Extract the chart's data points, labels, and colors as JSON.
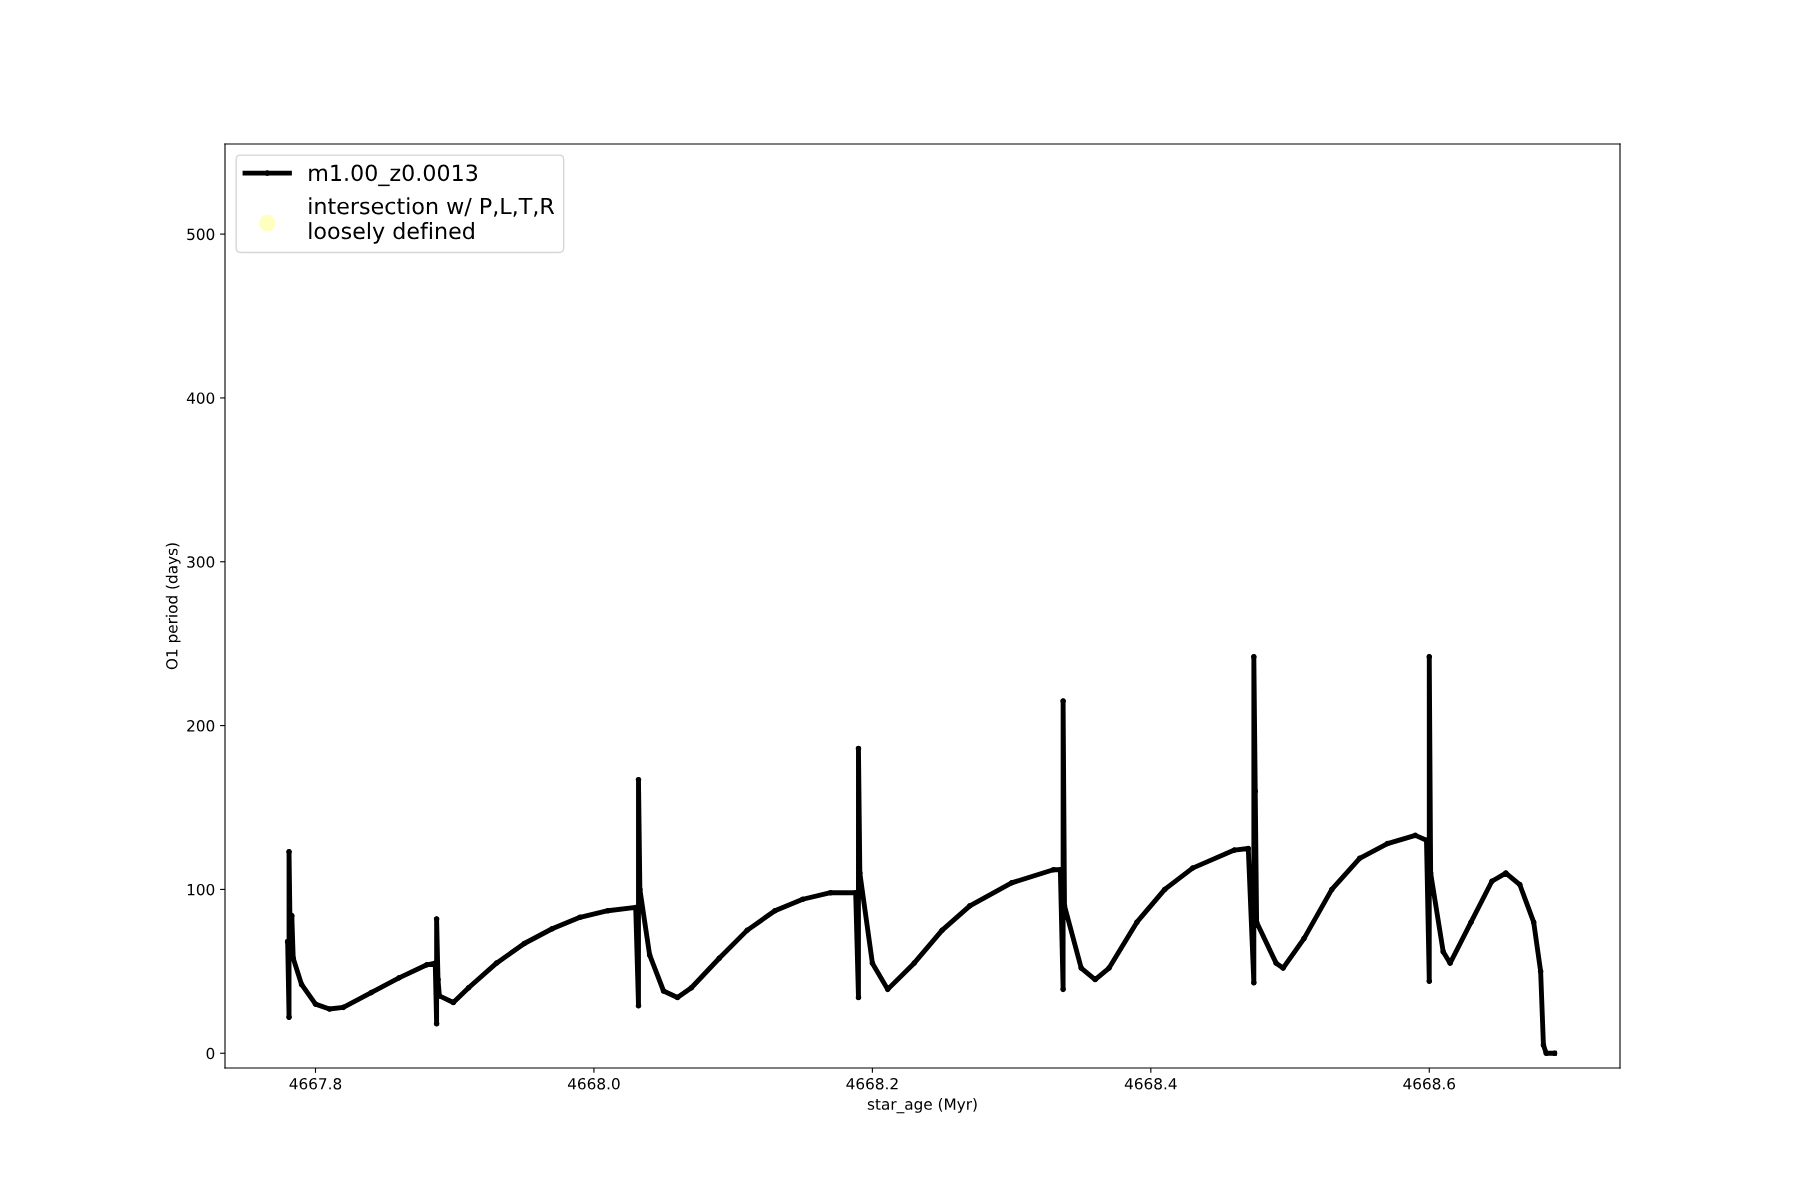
{
  "chart_data": {
    "type": "line",
    "xlabel": "star_age (Myr)",
    "ylabel": "O1 period (days)",
    "xlim": [
      4667.735,
      4668.737
    ],
    "xticks": [
      {
        "value": 4667.8,
        "label": "4667.8"
      },
      {
        "value": 4668.0,
        "label": "4668.0"
      },
      {
        "value": 4668.2,
        "label": "4668.2"
      },
      {
        "value": 4668.4,
        "label": "4668.4"
      },
      {
        "value": 4668.6,
        "label": "4668.6"
      }
    ],
    "ylim": [
      -9,
      555
    ],
    "yticks": [
      0,
      100,
      200,
      300,
      400,
      500
    ],
    "grid": false,
    "legend": "top left",
    "marker": "circle",
    "line_style": "solid",
    "series": [
      {
        "name": "m1.00_z0.0013",
        "color": "#000000",
        "x": [
          4667.78,
          4667.781,
          4667.781,
          4667.782,
          4667.783,
          4667.784,
          4667.79,
          4667.8,
          4667.81,
          4667.82,
          4667.84,
          4667.86,
          4667.88,
          4667.886,
          4667.887,
          4667.887,
          4667.888,
          4667.889,
          4667.899,
          4667.91,
          4667.93,
          4667.95,
          4667.97,
          4667.99,
          4668.01,
          4668.03,
          4668.032,
          4668.032,
          4668.033,
          4668.04,
          4668.05,
          4668.06,
          4668.07,
          4668.09,
          4668.11,
          4668.13,
          4668.15,
          4668.17,
          4668.188,
          4668.19,
          4668.19,
          4668.191,
          4668.2,
          4668.211,
          4668.23,
          4668.25,
          4668.27,
          4668.3,
          4668.33,
          4668.335,
          4668.337,
          4668.337,
          4668.338,
          4668.35,
          4668.36,
          4668.37,
          4668.39,
          4668.41,
          4668.43,
          4668.46,
          4668.47,
          4668.474,
          4668.474,
          4668.475,
          4668.476,
          4668.49,
          4668.495,
          4668.51,
          4668.53,
          4668.55,
          4668.57,
          4668.59,
          4668.598,
          4668.6,
          4668.6,
          4668.601,
          4668.61,
          4668.615,
          4668.63,
          4668.645,
          4668.655,
          4668.665,
          4668.675,
          4668.68,
          4668.682,
          4668.684,
          4668.69
        ],
        "values": [
          68,
          22,
          123,
          60,
          84,
          58,
          42,
          30,
          27,
          28,
          37,
          46,
          54,
          55,
          18,
          82,
          45,
          35,
          31,
          40,
          55,
          67,
          76,
          83,
          87,
          89,
          29,
          167,
          100,
          60,
          38,
          34,
          40,
          58,
          75,
          87,
          94,
          98,
          98,
          34,
          186,
          110,
          55,
          39,
          55,
          75,
          90,
          104,
          112,
          112,
          39,
          215,
          90,
          52,
          45,
          52,
          80,
          100,
          113,
          124,
          125,
          43,
          242,
          160,
          80,
          55,
          52,
          70,
          100,
          119,
          128,
          133,
          130,
          44,
          242,
          110,
          62,
          55,
          80,
          105,
          110,
          103,
          80,
          50,
          5,
          0,
          0
        ]
      },
      {
        "name": "intersection w/ P,L,T,R\nloosely defined",
        "color": "#ffffb3",
        "type": "scatter"
      }
    ]
  }
}
